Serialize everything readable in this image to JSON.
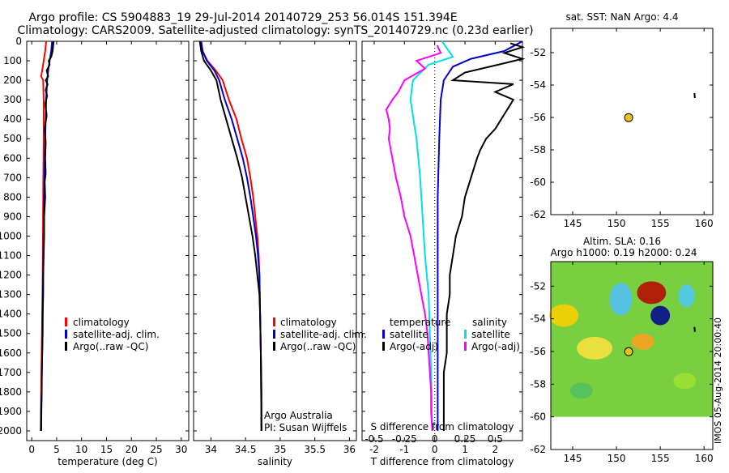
{
  "title_line1": "Argo profile: CS 5904883_19 29-Jul-2014 20140729_253 56.014S 151.394E",
  "title_line2": "Climatology: CARS2009. Satellite-adjusted climatology: synTS_20140729.nc (0.23d earlier)",
  "colors": {
    "climatology": "#ff0000",
    "satellite": "#0000cc",
    "argo": "#000000",
    "sat_s": "#00e0e0",
    "argo_s": "#ff00ff"
  },
  "chart_data": [
    {
      "type": "line",
      "name": "temperature",
      "xlabel": "temperature (deg C)",
      "xlim": [
        -1,
        31.5
      ],
      "ylim": [
        2050,
        0
      ],
      "xticks": [
        0,
        5,
        10,
        15,
        20,
        25,
        30
      ],
      "yticks": [
        0,
        100,
        200,
        300,
        400,
        500,
        600,
        700,
        800,
        900,
        1000,
        1100,
        1200,
        1300,
        1400,
        1500,
        1600,
        1700,
        1800,
        1900,
        2000
      ],
      "legend": [
        "climatology",
        "satellite-adj. clim.",
        "Argo(..raw -QC)"
      ],
      "series": [
        {
          "name": "climatology",
          "color": "#ff0000",
          "points": [
            [
              2.9,
              0
            ],
            [
              2.7,
              50
            ],
            [
              2.4,
              100
            ],
            [
              2.1,
              150
            ],
            [
              1.9,
              180
            ],
            [
              2.3,
              200
            ],
            [
              2.4,
              300
            ],
            [
              2.4,
              500
            ],
            [
              2.3,
              800
            ],
            [
              2.2,
              1200
            ],
            [
              2.0,
              1600
            ],
            [
              1.8,
              2000
            ]
          ]
        },
        {
          "name": "satellite-adj. clim.",
          "color": "#0000cc",
          "points": [
            [
              4.1,
              0
            ],
            [
              3.9,
              50
            ],
            [
              3.6,
              100
            ],
            [
              3.3,
              150
            ],
            [
              3.1,
              200
            ],
            [
              2.9,
              300
            ],
            [
              2.7,
              500
            ],
            [
              2.5,
              800
            ],
            [
              2.3,
              1200
            ],
            [
              2.1,
              1600
            ],
            [
              1.9,
              2000
            ]
          ]
        },
        {
          "name": "Argo(..raw -QC)",
          "color": "#000000",
          "points": [
            [
              4.4,
              0
            ],
            [
              4.2,
              50
            ],
            [
              3.9,
              80
            ],
            [
              3.4,
              100
            ],
            [
              3.6,
              120
            ],
            [
              3.0,
              150
            ],
            [
              3.3,
              180
            ],
            [
              2.8,
              200
            ],
            [
              3.2,
              220
            ],
            [
              2.8,
              250
            ],
            [
              3.1,
              280
            ],
            [
              2.7,
              320
            ],
            [
              3.0,
              380
            ],
            [
              2.6,
              450
            ],
            [
              2.8,
              520
            ],
            [
              2.7,
              600
            ],
            [
              2.8,
              680
            ],
            [
              2.6,
              720
            ],
            [
              2.7,
              800
            ],
            [
              2.5,
              900
            ],
            [
              2.5,
              1000
            ],
            [
              2.4,
              1100
            ],
            [
              2.3,
              1200
            ],
            [
              2.3,
              1300
            ],
            [
              2.2,
              1400
            ],
            [
              2.2,
              1500
            ],
            [
              2.1,
              1600
            ],
            [
              2.0,
              1700
            ],
            [
              2.0,
              1800
            ],
            [
              1.9,
              1900
            ],
            [
              1.9,
              2000
            ]
          ]
        }
      ]
    },
    {
      "type": "line",
      "name": "salinity",
      "xlabel": "salinity",
      "xlim": [
        33.75,
        36.1
      ],
      "ylim": [
        2050,
        0
      ],
      "xticks": [
        34,
        34.5,
        35,
        35.5,
        36
      ],
      "legend": [
        "climatology",
        "satellite-adj. clim.",
        "Argo(..raw -QC)"
      ],
      "annotation": [
        "Argo Australia",
        "PI: Susan Wijffels"
      ],
      "series": [
        {
          "name": "climatology",
          "color": "#ff0000",
          "points": [
            [
              33.86,
              0
            ],
            [
              33.88,
              50
            ],
            [
              33.95,
              100
            ],
            [
              34.07,
              150
            ],
            [
              34.17,
              200
            ],
            [
              34.26,
              300
            ],
            [
              34.37,
              400
            ],
            [
              34.44,
              500
            ],
            [
              34.52,
              600
            ],
            [
              34.57,
              700
            ],
            [
              34.61,
              800
            ],
            [
              34.64,
              900
            ],
            [
              34.67,
              1000
            ],
            [
              34.69,
              1100
            ],
            [
              34.7,
              1200
            ],
            [
              34.71,
              1400
            ],
            [
              34.72,
              1600
            ],
            [
              34.73,
              2000
            ]
          ]
        },
        {
          "name": "satellite-adj. clim.",
          "color": "#0000cc",
          "points": [
            [
              33.86,
              0
            ],
            [
              33.88,
              50
            ],
            [
              33.94,
              100
            ],
            [
              34.05,
              150
            ],
            [
              34.12,
              200
            ],
            [
              34.2,
              300
            ],
            [
              34.3,
              400
            ],
            [
              34.38,
              500
            ],
            [
              34.46,
              600
            ],
            [
              34.52,
              700
            ],
            [
              34.57,
              800
            ],
            [
              34.61,
              900
            ],
            [
              34.65,
              1000
            ],
            [
              34.68,
              1100
            ],
            [
              34.7,
              1200
            ],
            [
              34.71,
              1400
            ],
            [
              34.72,
              1600
            ],
            [
              34.73,
              2000
            ]
          ]
        },
        {
          "name": "Argo(..raw -QC)",
          "color": "#000000",
          "points": [
            [
              33.84,
              0
            ],
            [
              33.86,
              50
            ],
            [
              33.9,
              100
            ],
            [
              34.0,
              150
            ],
            [
              34.08,
              200
            ],
            [
              34.14,
              300
            ],
            [
              34.22,
              400
            ],
            [
              34.3,
              500
            ],
            [
              34.38,
              600
            ],
            [
              34.45,
              700
            ],
            [
              34.5,
              800
            ],
            [
              34.55,
              900
            ],
            [
              34.6,
              1000
            ],
            [
              34.64,
              1100
            ],
            [
              34.67,
              1200
            ],
            [
              34.7,
              1300
            ],
            [
              34.71,
              1400
            ],
            [
              34.72,
              1600
            ],
            [
              34.73,
              1800
            ],
            [
              34.73,
              2000
            ]
          ]
        }
      ]
    },
    {
      "type": "line",
      "name": "differences",
      "xlabel": "T difference from climatology",
      "xlabel_top": "S difference from climatology",
      "xlim": [
        -2.4,
        2.9
      ],
      "ylim": [
        2050,
        0
      ],
      "xticks_T": [
        -2,
        -1,
        0,
        1,
        2
      ],
      "xticks_S": [
        -0.5,
        -0.25,
        0,
        0.25,
        0.5
      ],
      "legend_T_title": "temperature",
      "legend_S_title": "salinity",
      "legend": [
        "satellite",
        "Argo(-adj)",
        "satellite",
        "Argo(-adj)"
      ],
      "series": [
        {
          "name": "temperature satellite",
          "color": "#0000cc",
          "points": [
            [
              2.9,
              0
            ],
            [
              2.3,
              50
            ],
            [
              1.2,
              90
            ],
            [
              0.6,
              130
            ],
            [
              0.3,
              200
            ],
            [
              0.2,
              300
            ],
            [
              0.15,
              500
            ],
            [
              0.1,
              800
            ],
            [
              0.1,
              1200
            ],
            [
              0.1,
              1600
            ],
            [
              0.1,
              2000
            ]
          ]
        },
        {
          "name": "temperature Argo(-adj)",
          "color": "#000000",
          "points": [
            [
              2.5,
              10
            ],
            [
              2.9,
              30
            ],
            [
              2.3,
              60
            ],
            [
              2.9,
              90
            ],
            [
              2.1,
              120
            ],
            [
              1.0,
              160
            ],
            [
              0.6,
              200
            ],
            [
              2.6,
              220
            ],
            [
              2.0,
              260
            ],
            [
              2.6,
              300
            ],
            [
              2.4,
              350
            ],
            [
              2.2,
              400
            ],
            [
              2.0,
              450
            ],
            [
              1.7,
              500
            ],
            [
              1.5,
              560
            ],
            [
              1.4,
              600
            ],
            [
              1.3,
              650
            ],
            [
              1.2,
              700
            ],
            [
              1.0,
              800
            ],
            [
              0.9,
              900
            ],
            [
              0.7,
              1000
            ],
            [
              0.6,
              1100
            ],
            [
              0.5,
              1200
            ],
            [
              0.5,
              1300
            ],
            [
              0.4,
              1400
            ],
            [
              0.4,
              1500
            ],
            [
              0.4,
              1600
            ],
            [
              0.3,
              1700
            ],
            [
              0.3,
              1800
            ],
            [
              0.3,
              1900
            ],
            [
              0.3,
              2000
            ]
          ]
        },
        {
          "name": "salinity satellite",
          "color": "#00e0e0",
          "points": [
            [
              0.06,
              0
            ],
            [
              0.15,
              80
            ],
            [
              -0.05,
              120
            ],
            [
              -0.18,
              200
            ],
            [
              -0.2,
              300
            ],
            [
              -0.15,
              500
            ],
            [
              -0.12,
              700
            ],
            [
              -0.1,
              900
            ],
            [
              -0.08,
              1100
            ],
            [
              -0.05,
              1300
            ],
            [
              -0.04,
              1500
            ],
            [
              -0.03,
              1700
            ],
            [
              -0.02,
              2000
            ]
          ]
        },
        {
          "name": "salinity Argo(-adj)",
          "color": "#ff00ff",
          "points": [
            [
              0.02,
              20
            ],
            [
              0.05,
              60
            ],
            [
              -0.15,
              100
            ],
            [
              -0.08,
              140
            ],
            [
              -0.25,
              200
            ],
            [
              -0.3,
              260
            ],
            [
              -0.35,
              300
            ],
            [
              -0.4,
              350
            ],
            [
              -0.38,
              400
            ],
            [
              -0.37,
              450
            ],
            [
              -0.38,
              500
            ],
            [
              -0.35,
              600
            ],
            [
              -0.32,
              700
            ],
            [
              -0.28,
              800
            ],
            [
              -0.25,
              900
            ],
            [
              -0.2,
              1000
            ],
            [
              -0.17,
              1100
            ],
            [
              -0.14,
              1200
            ],
            [
              -0.11,
              1300
            ],
            [
              -0.08,
              1400
            ],
            [
              -0.06,
              1500
            ],
            [
              -0.05,
              1600
            ],
            [
              -0.04,
              1700
            ],
            [
              -0.03,
              1800
            ],
            [
              -0.03,
              1900
            ],
            [
              -0.02,
              2000
            ]
          ]
        }
      ]
    },
    {
      "type": "scatter",
      "name": "map-sst",
      "title": "sat. SST: NaN Argo: 4.4",
      "xlim": [
        142.5,
        161
      ],
      "ylim": [
        -62,
        -50.5
      ],
      "xticks": [
        145,
        150,
        155,
        160
      ],
      "yticks": [
        -52,
        -54,
        -56,
        -58,
        -60,
        -62
      ],
      "points": [
        {
          "x": 151.39,
          "y": -56.01,
          "color": "#f0c020"
        }
      ]
    },
    {
      "type": "heatmap",
      "name": "map-sla",
      "title_line1": "Altim. SLA: 0.16",
      "title_line2": "Argo h1000: 0.19 h2000: 0.24",
      "xlim": [
        142.5,
        161
      ],
      "ylim": [
        -62,
        -50.5
      ],
      "xticks": [
        145,
        150,
        155,
        160
      ],
      "yticks": [
        -52,
        -54,
        -56,
        -58,
        -60,
        -62
      ],
      "side_label": "IMOS 05-Aug-2014 20:00:40",
      "points": [
        {
          "x": 151.39,
          "y": -56.01,
          "color": "#f0c020"
        }
      ]
    }
  ]
}
